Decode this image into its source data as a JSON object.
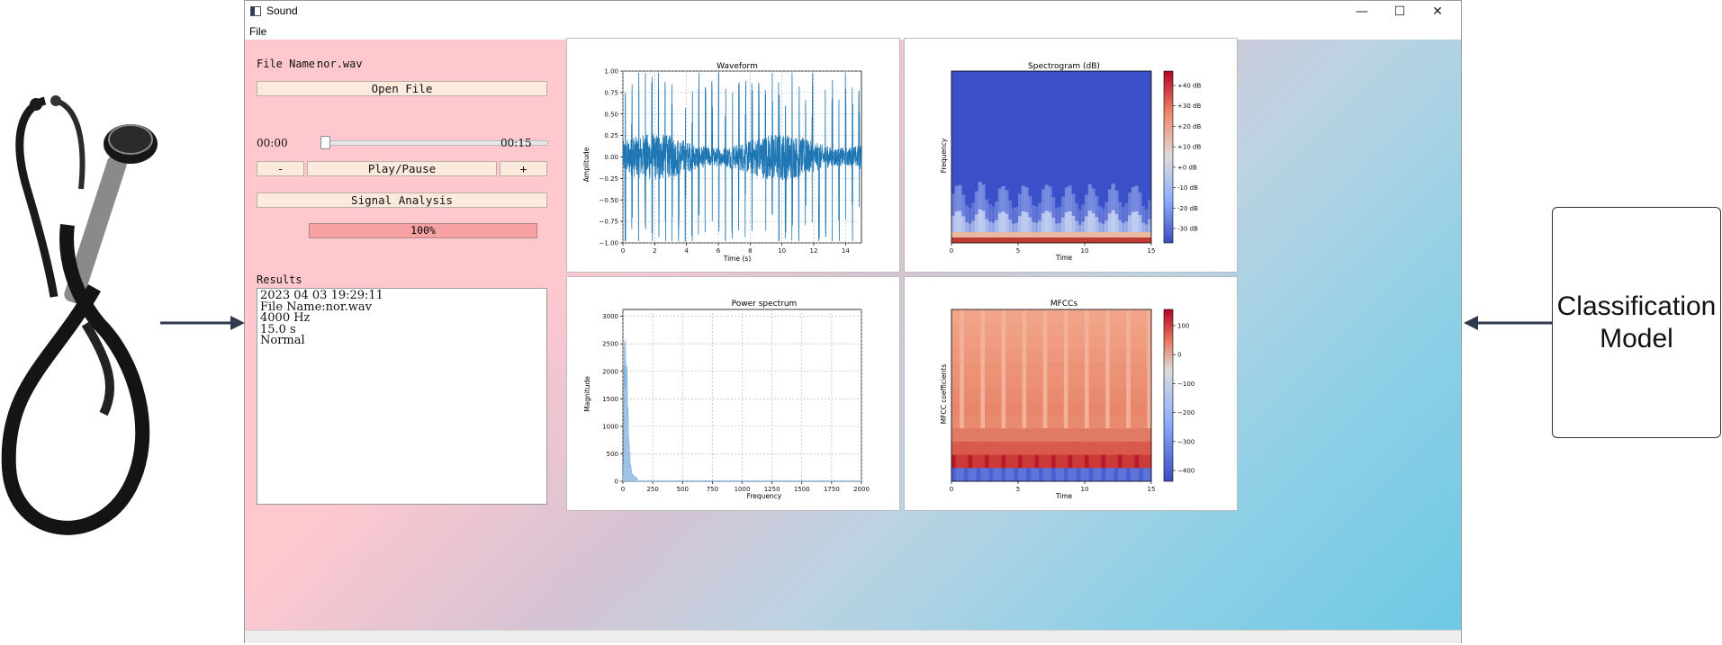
{
  "side_label": {
    "model_text_line1": "Classification",
    "model_text_line2": "Model"
  },
  "window": {
    "title": "Sound",
    "menu_file": "File",
    "minimize": "—",
    "maximize": "☐",
    "close": "✕"
  },
  "left_panel": {
    "file_name_label": "File Name:",
    "file_name_value": "nor.wav",
    "open_file_button": "Open File",
    "time_start": "00:00",
    "time_end": "00:15",
    "minus_button": "-",
    "play_pause_button": "Play/Pause",
    "plus_button": "+",
    "signal_analysis_button": "Signal Analysis",
    "progress_text": "100%",
    "progress_value": 1.0,
    "playback_position": 0.0,
    "results_label": "Results",
    "results_lines": [
      "2023 04 03 19:29:11",
      "File Name:nor.wav",
      "4000 Hz",
      "15.0 s",
      "Normal"
    ]
  },
  "chart_data": [
    {
      "type": "line",
      "title": "Waveform",
      "xlabel": "Time (s)",
      "ylabel": "Amplitude",
      "xlim": [
        0,
        15
      ],
      "ylim": [
        -1.0,
        1.0
      ],
      "xticks": [
        0,
        2,
        4,
        6,
        8,
        10,
        12,
        14
      ],
      "yticks": [
        -1.0,
        -0.75,
        -0.5,
        -0.25,
        0.0,
        0.25,
        0.5,
        0.75,
        1.0
      ],
      "ytick_labels": [
        "−1.00",
        "−0.75",
        "−0.50",
        "−0.25",
        "0.00",
        "0.25",
        "0.50",
        "0.75",
        "1.00"
      ],
      "grid": true,
      "color": "#1f77b4"
    },
    {
      "type": "heatmap",
      "title": "Spectrogram (dB)",
      "xlabel": "Time",
      "ylabel": "Frequency",
      "xlim": [
        0,
        15
      ],
      "xticks": [
        0,
        5,
        10,
        15
      ],
      "colorbar_ticks": [
        "+40 dB",
        "+30 dB",
        "+20 dB",
        "+10 dB",
        "+0 dB",
        "-10 dB",
        "-20 dB",
        "-30 dB"
      ],
      "colormap": "coolwarm"
    },
    {
      "type": "area",
      "title": "Power spectrum",
      "xlabel": "Frequency",
      "ylabel": "Magnitude",
      "xlim": [
        0,
        2000
      ],
      "ylim": [
        0,
        3000
      ],
      "xticks": [
        0,
        250,
        500,
        750,
        1000,
        1250,
        1500,
        1750,
        2000
      ],
      "yticks": [
        0,
        500,
        1000,
        1500,
        2000,
        2500,
        3000
      ],
      "peak": {
        "x": 20,
        "y": 2000
      },
      "grid": true,
      "color": "#9ec3e6"
    },
    {
      "type": "heatmap",
      "title": "MFCCs",
      "xlabel": "Time",
      "ylabel": "MFCC coefficients",
      "xlim": [
        0,
        15
      ],
      "xticks": [
        0,
        5,
        10,
        15
      ],
      "colorbar_ticks": [
        "100",
        "0",
        "−100",
        "−200",
        "−300",
        "−400"
      ],
      "colormap": "coolwarm"
    }
  ],
  "colors": {
    "window_bg_pink": "#ffc8cf",
    "window_bg_blue": "#6cc8e4",
    "button_fill": "#fcebdd",
    "progress_fill": "#f7a1a2"
  },
  "icons": {
    "stethoscope": "stethoscope-icon",
    "app": "app-icon"
  }
}
